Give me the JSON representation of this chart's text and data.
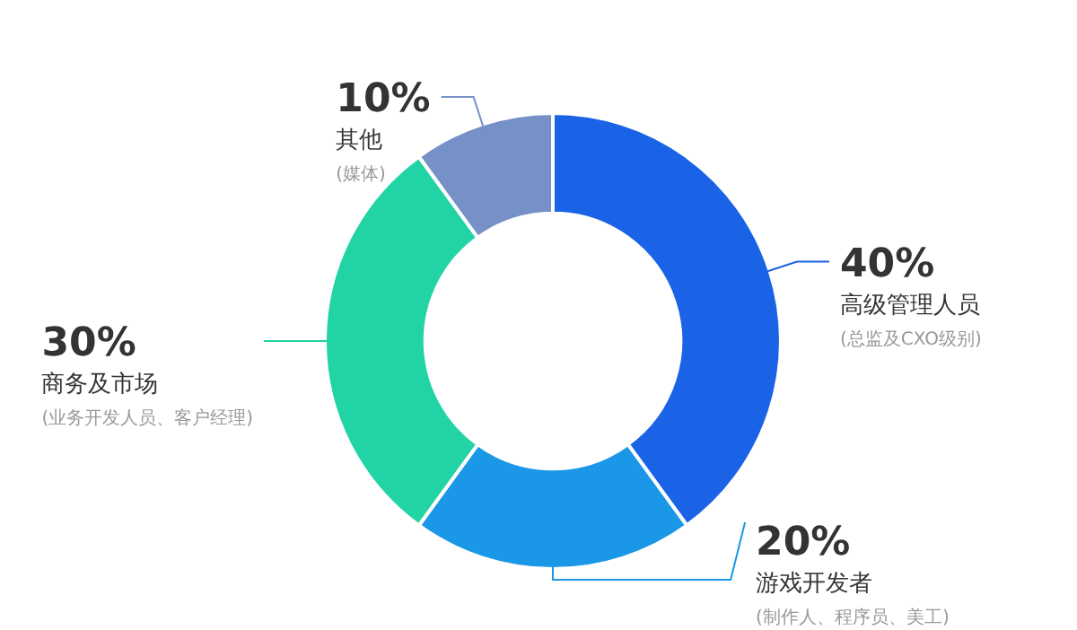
{
  "chart_data": {
    "type": "donut",
    "categories": [
      "高级管理人员",
      "游戏开发者",
      "商务及市场",
      "其他"
    ],
    "values": [
      40,
      20,
      30,
      10
    ],
    "value_labels": [
      "40%",
      "20%",
      "30%",
      "10%"
    ],
    "colors": [
      "#1a63e6",
      "#1a97e6",
      "#22d3a5",
      "#7690c8"
    ],
    "annotations": [
      "(总监及CXO级别)",
      "(制作人、程序员、美工)",
      "(业务开发人员、客户经理)",
      "(媒体)"
    ]
  }
}
